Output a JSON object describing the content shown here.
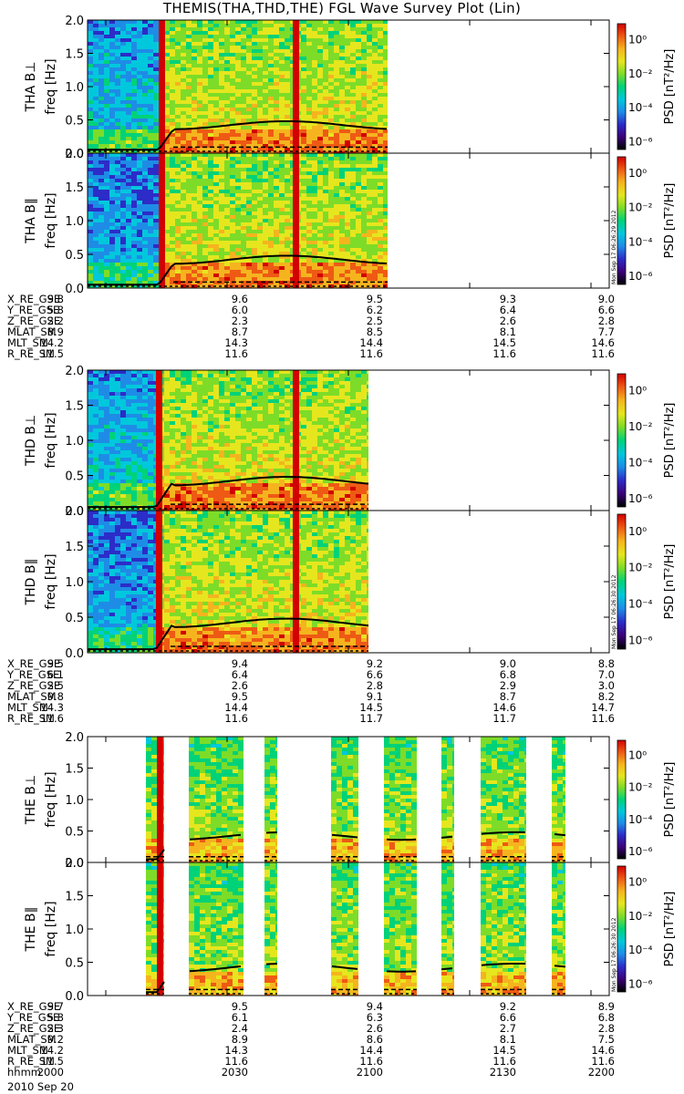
{
  "title": "THEMIS(THA,THD,THE) FGL Wave Survey Plot (Lin)",
  "date_label": "2010 Sep 20",
  "colors": {
    "background": "#ffffff",
    "axes": "#000000",
    "line": "#000000",
    "colormap": [
      "#000000",
      "#3c0078",
      "#2c2cc8",
      "#1e8ce6",
      "#00c8dc",
      "#00d278",
      "#7ddc28",
      "#e6e61e",
      "#f5b41e",
      "#ee5a14",
      "#d20000"
    ]
  },
  "colorbar": {
    "label": "PSD [nT²/Hz]",
    "tick_labels": [
      "10⁰",
      "10⁻²",
      "10⁻⁴",
      "10⁻⁶"
    ],
    "side_text": [
      "Mon Sep 17 06:26:29 2012",
      "Mon Sep 17 06:26:30 2012",
      "Mon Sep 17 06:26:30 2012"
    ]
  },
  "freq_ticks": [
    "2.0",
    "1.5",
    "1.0",
    "0.5",
    "0.0"
  ],
  "freq_unit_label": "freq [Hz]",
  "chart_data": [
    {
      "type": "heatmap",
      "probe": "THA",
      "panels": [
        {
          "ylabel": "THA B⊥"
        },
        {
          "ylabel": "THA B∥"
        }
      ],
      "ylim": [
        0,
        2
      ],
      "zscale": "log",
      "zlim": [
        1e-07,
        10
      ],
      "ephemeris": {
        "labels": [
          "X_RE_GSE",
          "Y_RE_GSE",
          "Z_RE_GSE",
          "MLAT_SM",
          "MLT_SM",
          "R_RE_SM"
        ],
        "columns": [
          [
            "9.8",
            "5.8",
            "2.2",
            "8.9",
            "14.2",
            "11.5"
          ],
          [
            "9.6",
            "6.0",
            "2.3",
            "8.7",
            "14.3",
            "11.6"
          ],
          [
            "9.5",
            "6.2",
            "2.5",
            "8.5",
            "14.4",
            "11.6"
          ],
          [
            "9.3",
            "6.4",
            "2.6",
            "8.1",
            "14.5",
            "11.6"
          ],
          [
            "9.0",
            "6.6",
            "2.8",
            "7.7",
            "14.6",
            "11.6"
          ]
        ]
      }
    },
    {
      "type": "heatmap",
      "probe": "THD",
      "panels": [
        {
          "ylabel": "THD B⊥"
        },
        {
          "ylabel": "THD B∥"
        }
      ],
      "ylim": [
        0,
        2
      ],
      "zscale": "log",
      "zlim": [
        1e-07,
        10
      ],
      "ephemeris": {
        "labels": [
          "X_RE_GSE",
          "Y_RE_GSE",
          "Z_RE_GSE",
          "MLAT_SM",
          "MLT_SM",
          "R_RE_SM"
        ],
        "columns": [
          [
            "9.5",
            "6.1",
            "2.5",
            "9.8",
            "14.3",
            "11.6"
          ],
          [
            "9.4",
            "6.4",
            "2.6",
            "9.5",
            "14.4",
            "11.6"
          ],
          [
            "9.2",
            "6.6",
            "2.8",
            "9.1",
            "14.5",
            "11.7"
          ],
          [
            "9.0",
            "6.8",
            "2.9",
            "8.7",
            "14.6",
            "11.7"
          ],
          [
            "8.8",
            "7.0",
            "3.0",
            "8.2",
            "14.7",
            "11.6"
          ]
        ]
      }
    },
    {
      "type": "heatmap",
      "probe": "THE",
      "panels": [
        {
          "ylabel": "THE B⊥"
        },
        {
          "ylabel": "THE B∥"
        }
      ],
      "ylim": [
        0,
        2
      ],
      "zscale": "log",
      "zlim": [
        1e-07,
        10
      ],
      "ephemeris": {
        "labels": [
          "X_RE_GSE",
          "Y_RE_GSE",
          "Z_RE_GSE",
          "MLAT_SM",
          "MLT_SM",
          "R_RE_SM",
          "hhmm"
        ],
        "columns": [
          [
            "9.7",
            "5.8",
            "2.3",
            "9.2",
            "14.2",
            "11.5",
            "2000"
          ],
          [
            "9.5",
            "6.1",
            "2.4",
            "8.9",
            "14.3",
            "11.6",
            "2030"
          ],
          [
            "9.4",
            "6.3",
            "2.6",
            "8.6",
            "14.4",
            "11.6",
            "2100"
          ],
          [
            "9.2",
            "6.6",
            "2.7",
            "8.1",
            "14.5",
            "11.6",
            "2130"
          ],
          [
            "8.9",
            "6.8",
            "2.8",
            "7.5",
            "14.6",
            "11.6",
            "2200"
          ]
        ]
      }
    }
  ]
}
